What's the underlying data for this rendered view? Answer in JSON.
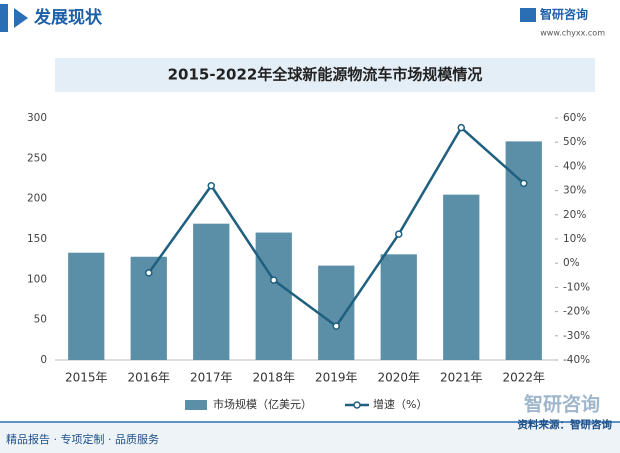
{
  "header": {
    "section": "发展现状",
    "logo": "智研咨询",
    "url": "www.chyxx.com"
  },
  "chart_data": {
    "type": "bar",
    "title": "2015-2022年全球新能源物流车市场规模情况",
    "categories": [
      "2015年",
      "2016年",
      "2017年",
      "2018年",
      "2019年",
      "2020年",
      "2021年",
      "2022年"
    ],
    "series": [
      {
        "name": "市场规模（亿美元）",
        "color": "#5b8fa8",
        "values": [
          133,
          128,
          169,
          158,
          117,
          131,
          205,
          271
        ]
      },
      {
        "name": "增速（%）",
        "color": "#1f5f7f",
        "axis": "y2",
        "type": "line",
        "values": [
          null,
          -4,
          32,
          -7,
          -26,
          12,
          56,
          33
        ]
      }
    ],
    "ylim": [
      0,
      300
    ],
    "yticks": [
      0,
      50,
      100,
      150,
      200,
      250,
      300
    ],
    "y2lim": [
      -40,
      60
    ],
    "y2ticks": [
      {
        "value": -40,
        "label": "-40%"
      },
      {
        "value": -30,
        "label": "-30%"
      },
      {
        "value": -20,
        "label": "-20%"
      },
      {
        "value": -10,
        "label": "-10%"
      },
      {
        "value": 0,
        "label": "0%"
      },
      {
        "value": 10,
        "label": "10%"
      },
      {
        "value": 20,
        "label": "20%"
      },
      {
        "value": 30,
        "label": "30%"
      },
      {
        "value": 40,
        "label": "40%"
      },
      {
        "value": 50,
        "label": "50%"
      },
      {
        "value": 60,
        "label": "60%"
      }
    ],
    "grid": false
  },
  "footer": {
    "slogan": "精品报告 · 专项定制 · 品质服务",
    "source": "资料来源：智研咨询",
    "logo": "智研咨询"
  }
}
